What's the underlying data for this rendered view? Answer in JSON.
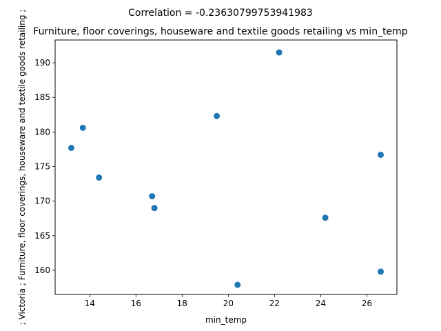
{
  "chart_data": {
    "type": "scatter",
    "suptitle": "Correlation = -0.23630799753941983",
    "title": "Furniture, floor coverings, houseware and textile goods retailing vs min_temp",
    "xlabel": "min_temp",
    "ylabel": "; Victoria ;  Furniture, floor coverings, houseware and textile goods retailing ;",
    "xlim": [
      12.5,
      27.3
    ],
    "ylim": [
      156.5,
      193.3
    ],
    "xticks": [
      14,
      16,
      18,
      20,
      22,
      24,
      26
    ],
    "yticks": [
      160,
      165,
      170,
      175,
      180,
      185,
      190
    ],
    "grid": false,
    "marker_color": "#1f77b4",
    "points": [
      {
        "x": 13.2,
        "y": 177.7
      },
      {
        "x": 13.7,
        "y": 180.6
      },
      {
        "x": 14.4,
        "y": 173.4
      },
      {
        "x": 16.7,
        "y": 170.7
      },
      {
        "x": 16.8,
        "y": 169.0
      },
      {
        "x": 19.5,
        "y": 182.3
      },
      {
        "x": 20.4,
        "y": 157.9
      },
      {
        "x": 22.2,
        "y": 191.5
      },
      {
        "x": 24.2,
        "y": 167.6
      },
      {
        "x": 26.6,
        "y": 176.7
      },
      {
        "x": 26.6,
        "y": 159.8
      }
    ]
  }
}
